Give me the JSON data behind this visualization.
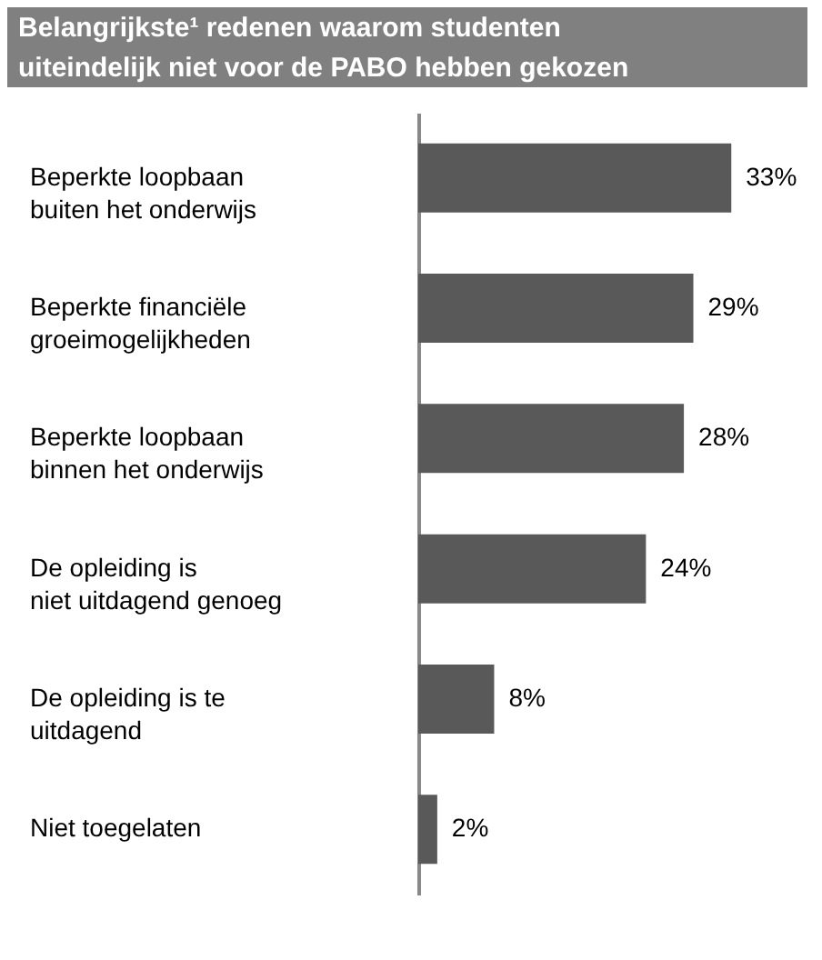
{
  "chart_data": {
    "type": "bar",
    "orientation": "horizontal",
    "title": "Belangrijkste¹ redenen waarom studenten uiteindelijk niet voor de PABO hebben gekozen",
    "categories": [
      "Beperkte loopbaan\nbuiten het onderwijs",
      "Beperkte financiële\ngroeimogelijkheden",
      "Beperkte loopbaan\nbinnen het onderwijs",
      "De opleiding is\nniet uitdagend genoeg",
      "De opleiding is te\nuitdagend",
      "Niet toegelaten"
    ],
    "values": [
      33,
      29,
      28,
      24,
      8,
      2
    ],
    "value_labels": [
      "33%",
      "29%",
      "28%",
      "24%",
      "8%",
      "2%"
    ],
    "color": "#595959"
  }
}
